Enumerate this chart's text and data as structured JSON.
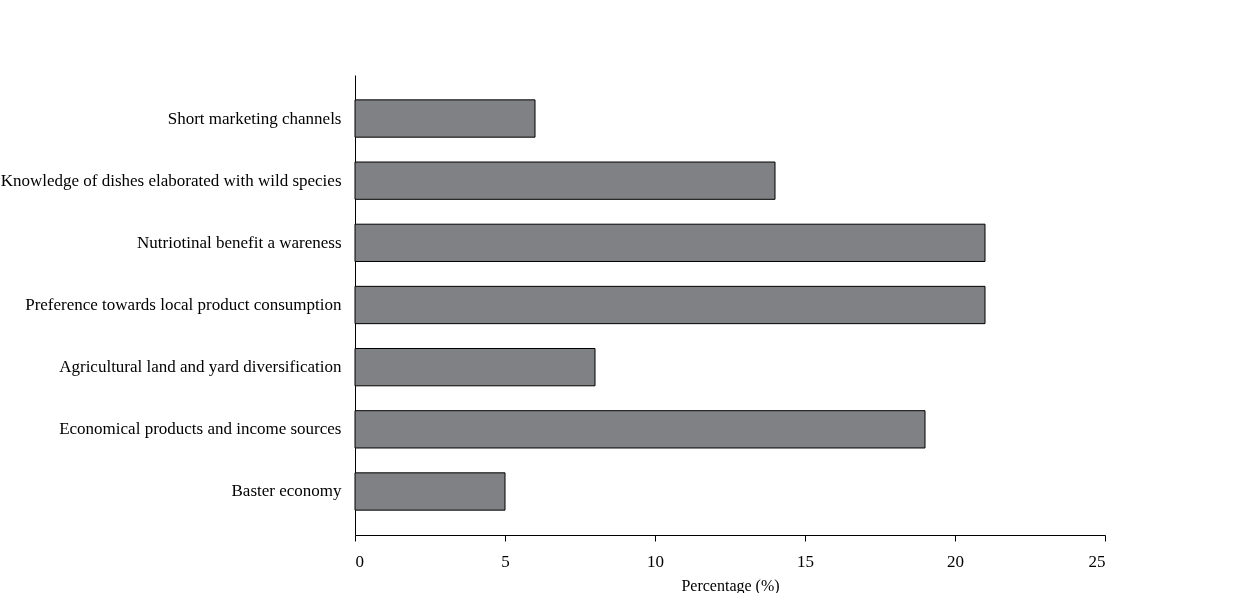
{
  "chart_data": {
    "type": "bar",
    "orientation": "horizontal",
    "xlabel": "Percentage (%)",
    "categories": [
      "Short marketing channels",
      "Knowledge of dishes elaborated with wild species",
      "Nutriotinal benefit a wareness",
      "Preference towards local product consumption",
      "Agricultural land and yard diversification",
      "Economical products and income sources",
      "Baster economy"
    ],
    "values": [
      6,
      14,
      21,
      21,
      8,
      19,
      5
    ],
    "color": "#808184",
    "xlim": [
      0,
      25
    ],
    "xticks": [
      0,
      5,
      10,
      15,
      20,
      25
    ],
    "grid": false
  }
}
